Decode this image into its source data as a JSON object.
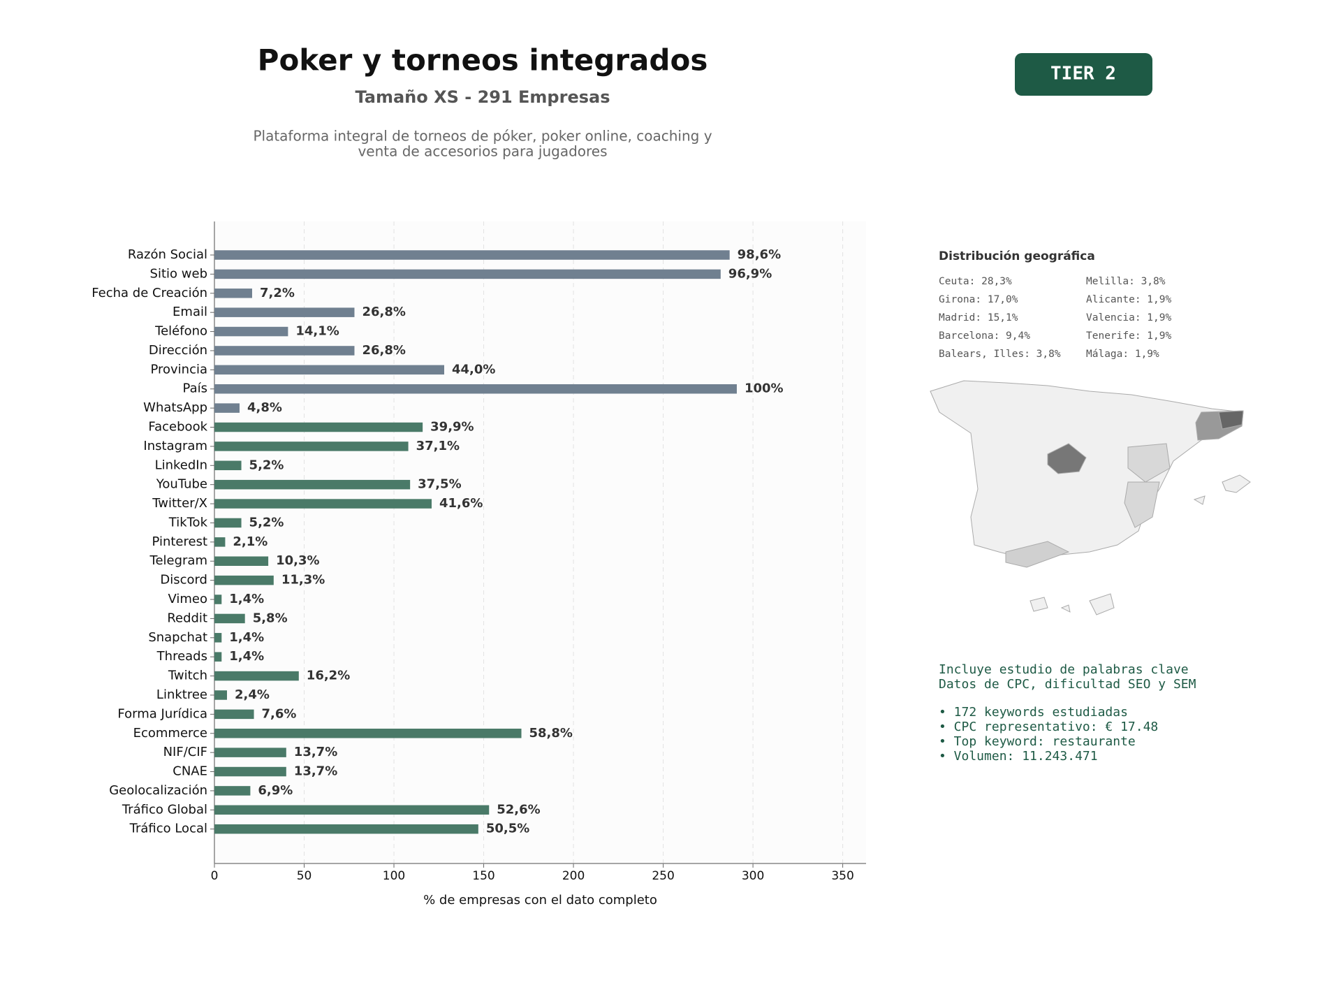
{
  "chart_data": {
    "type": "barh",
    "title": "Poker y torneos integrados",
    "subtitle": "Tamaño XS - 291 Empresas",
    "description": [
      "Plataforma integral de torneos de póker, poker online, coaching y",
      "venta de accesorios para jugadores"
    ],
    "badge": "TIER 2",
    "xlabel": "% de empresas con el dato completo",
    "categories": [
      "Razón Social",
      "Sitio web",
      "Fecha de Creación",
      "Email",
      "Teléfono",
      "Dirección",
      "Provincia",
      "País",
      "WhatsApp",
      "Facebook",
      "Instagram",
      "LinkedIn",
      "YouTube",
      "Twitter/X",
      "TikTok",
      "Pinterest",
      "Telegram",
      "Discord",
      "Vimeo",
      "Reddit",
      "Snapchat",
      "Threads",
      "Twitch",
      "Linktree",
      "Forma Jurídica",
      "Ecommerce",
      "NIF/CIF",
      "CNAE",
      "Geolocalización",
      "Tráfico Global",
      "Tráfico Local"
    ],
    "values": [
      287,
      282,
      21,
      78,
      41,
      78,
      128,
      291,
      14,
      116,
      108,
      15,
      109,
      121,
      15,
      6,
      30,
      33,
      4,
      17,
      4,
      4,
      47,
      7,
      22,
      171,
      40,
      40,
      20,
      153,
      147
    ],
    "value_labels": [
      "98,6%",
      "96,9%",
      "7,2%",
      "26,8%",
      "14,1%",
      "26,8%",
      "44,0%",
      "100%",
      "4,8%",
      "39,9%",
      "37,1%",
      "5,2%",
      "37,5%",
      "41,6%",
      "5,2%",
      "2,1%",
      "10,3%",
      "11,3%",
      "1,4%",
      "5,8%",
      "1,4%",
      "1,4%",
      "16,2%",
      "2,4%",
      "7,6%",
      "58,8%",
      "13,7%",
      "13,7%",
      "6,9%",
      "52,6%",
      "50,5%"
    ],
    "colors": [
      "#708090",
      "#708090",
      "#708090",
      "#708090",
      "#708090",
      "#708090",
      "#708090",
      "#708090",
      "#708090",
      "#4a7a68",
      "#4a7a68",
      "#4a7a68",
      "#4a7a68",
      "#4a7a68",
      "#4a7a68",
      "#4a7a68",
      "#4a7a68",
      "#4a7a68",
      "#4a7a68",
      "#4a7a68",
      "#4a7a68",
      "#4a7a68",
      "#4a7a68",
      "#4a7a68",
      "#4a7a68",
      "#4a7a68",
      "#4a7a68",
      "#4a7a68",
      "#4a7a68",
      "#4a7a68",
      "#4a7a68"
    ],
    "xlim": [
      0,
      363
    ],
    "xticks": [
      0,
      50,
      100,
      150,
      200,
      250,
      300,
      350
    ],
    "grid": true,
    "geo": {
      "title": "Distribución geográfica",
      "items": [
        "Ceuta: 28,3%",
        "Girona: 17,0%",
        "Madrid: 15,1%",
        "Barcelona: 9,4%",
        "Balears, Illes: 3,8%",
        "Melilla: 3,8%",
        "Alicante: 1,9%",
        "Valencia: 1,9%",
        "Tenerife: 1,9%",
        "Málaga: 1,9%"
      ]
    },
    "notes": [
      "Incluye estudio de palabras clave",
      "Datos de CPC, dificultad SEO y SEM"
    ],
    "bullets": [
      "• 172 keywords estudiadas",
      "• CPC representativo: € 17.48",
      "• Top keyword: restaurante",
      "• Volumen: 11.243.471"
    ]
  }
}
